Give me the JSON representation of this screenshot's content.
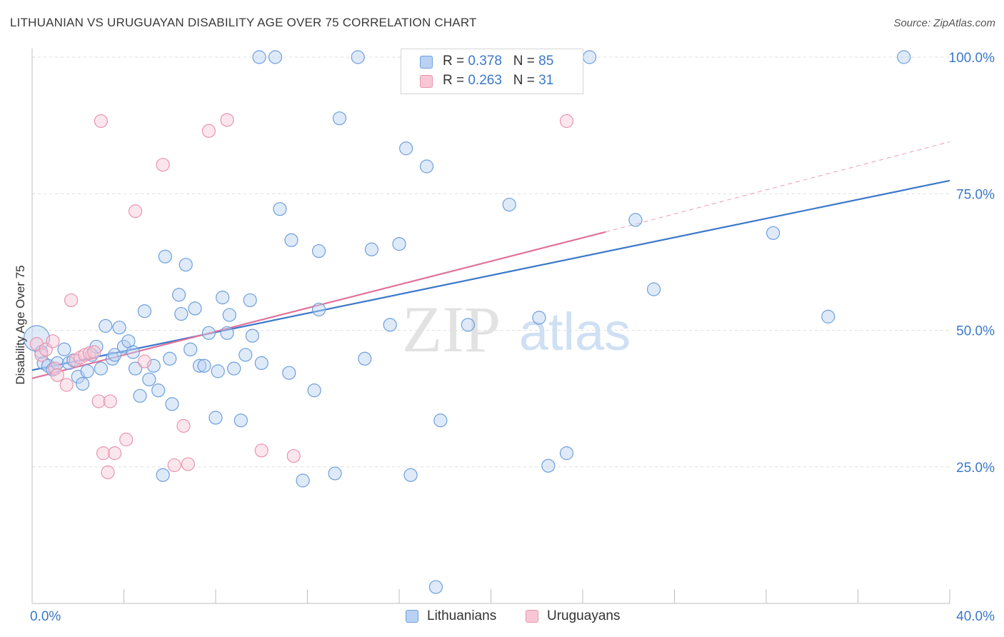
{
  "title": "LITHUANIAN VS URUGUAYAN DISABILITY AGE OVER 75 CORRELATION CHART",
  "source": "Source: ZipAtlas.com",
  "watermark": {
    "zip": "ZIP",
    "atlas": "atlas"
  },
  "colors": {
    "blue": "#6e9fdc",
    "blue_fill": "#b9d1f2",
    "blue_line": "#3a78c9",
    "pink": "#e895ae",
    "pink_fill": "#f8c7d6",
    "pink_line": "#e0719a",
    "axis_label": "#3b78c8",
    "grid": "#dedede"
  },
  "legend": {
    "rows": [
      {
        "r_label": "R = ",
        "r_value": "0.378",
        "n_label": "N = ",
        "n_value": "85"
      },
      {
        "r_label": "R = ",
        "r_value": "0.263",
        "n_label": "N = ",
        "n_value": "31"
      }
    ],
    "bottom": [
      "Lithuanians",
      "Uruguayans"
    ]
  },
  "chart_data": {
    "type": "scatter",
    "title": "LITHUANIAN VS URUGUAYAN DISABILITY AGE OVER 75 CORRELATION CHART",
    "xlabel": "",
    "ylabel": "Disability Age Over 75",
    "xlim": [
      0,
      40
    ],
    "ylim": [
      0,
      102
    ],
    "x_tick_labels": [
      "0.0%",
      "40.0%"
    ],
    "y_tick_labels": [
      "25.0%",
      "50.0%",
      "75.0%",
      "100.0%"
    ],
    "y_ticks": [
      25,
      50,
      75,
      100
    ],
    "grid": true,
    "legend_position": "top-center",
    "series": [
      {
        "name": "Lithuanians",
        "points": [
          [
            0.2,
            48.5
          ],
          [
            0.4,
            46.0
          ],
          [
            0.5,
            44.0
          ],
          [
            0.7,
            43.5
          ],
          [
            0.9,
            42.8
          ],
          [
            1.1,
            44.0
          ],
          [
            1.4,
            46.5
          ],
          [
            1.6,
            44.0
          ],
          [
            1.8,
            44.5
          ],
          [
            2.0,
            41.5
          ],
          [
            2.2,
            40.2
          ],
          [
            2.4,
            42.5
          ],
          [
            2.6,
            45.5
          ],
          [
            2.8,
            47.0
          ],
          [
            3.0,
            43.0
          ],
          [
            3.2,
            50.8
          ],
          [
            3.5,
            44.8
          ],
          [
            3.6,
            45.5
          ],
          [
            3.8,
            50.5
          ],
          [
            4.0,
            47.0
          ],
          [
            4.2,
            48.0
          ],
          [
            4.4,
            46.0
          ],
          [
            4.5,
            43.0
          ],
          [
            4.7,
            38.0
          ],
          [
            4.9,
            53.5
          ],
          [
            5.1,
            41.0
          ],
          [
            5.3,
            43.5
          ],
          [
            5.5,
            39.0
          ],
          [
            5.8,
            63.5
          ],
          [
            6.0,
            44.8
          ],
          [
            6.1,
            36.5
          ],
          [
            6.4,
            56.5
          ],
          [
            6.5,
            53.0
          ],
          [
            6.7,
            62.0
          ],
          [
            6.9,
            46.5
          ],
          [
            7.1,
            54.0
          ],
          [
            7.3,
            43.5
          ],
          [
            7.5,
            43.5
          ],
          [
            7.7,
            49.5
          ],
          [
            8.0,
            34.0
          ],
          [
            8.1,
            42.5
          ],
          [
            8.3,
            56.0
          ],
          [
            8.5,
            49.5
          ],
          [
            8.6,
            52.8
          ],
          [
            8.8,
            43.0
          ],
          [
            9.1,
            33.5
          ],
          [
            9.3,
            45.5
          ],
          [
            9.5,
            55.5
          ],
          [
            9.6,
            49.0
          ],
          [
            10.0,
            44.0
          ],
          [
            10.8,
            72.2
          ],
          [
            11.2,
            42.2
          ],
          [
            11.3,
            66.5
          ],
          [
            11.8,
            22.5
          ],
          [
            12.3,
            39.0
          ],
          [
            12.5,
            64.5
          ],
          [
            12.5,
            53.8
          ],
          [
            13.2,
            23.8
          ],
          [
            13.4,
            88.8
          ],
          [
            14.5,
            44.8
          ],
          [
            14.8,
            64.8
          ],
          [
            15.6,
            51.0
          ],
          [
            16.0,
            65.8
          ],
          [
            16.3,
            83.3
          ],
          [
            16.5,
            23.5
          ],
          [
            17.2,
            80.0
          ],
          [
            17.8,
            33.5
          ],
          [
            19.0,
            51.0
          ],
          [
            20.8,
            73.0
          ],
          [
            22.1,
            52.3
          ],
          [
            22.5,
            25.2
          ],
          [
            23.3,
            27.5
          ],
          [
            26.3,
            70.2
          ],
          [
            27.1,
            57.5
          ],
          [
            32.3,
            67.8
          ],
          [
            34.7,
            52.5
          ],
          [
            38.0,
            100.0
          ],
          [
            9.9,
            100.0
          ],
          [
            10.6,
            100.0
          ],
          [
            19.8,
            100.0
          ],
          [
            20.8,
            100.0
          ],
          [
            24.3,
            100.0
          ],
          [
            14.2,
            100.0
          ],
          [
            17.6,
            3.0
          ],
          [
            5.7,
            23.5
          ]
        ],
        "trend": {
          "x": [
            0,
            40
          ],
          "y": [
            42.7,
            77.4
          ],
          "dashed": false
        }
      },
      {
        "name": "Uruguayans",
        "points": [
          [
            0.2,
            47.5
          ],
          [
            0.4,
            45.5
          ],
          [
            0.6,
            46.5
          ],
          [
            0.9,
            48.0
          ],
          [
            1.0,
            43.0
          ],
          [
            1.1,
            41.8
          ],
          [
            1.5,
            40.0
          ],
          [
            1.7,
            55.5
          ],
          [
            1.9,
            44.5
          ],
          [
            2.1,
            45.0
          ],
          [
            2.3,
            45.5
          ],
          [
            2.5,
            45.8
          ],
          [
            2.7,
            46.0
          ],
          [
            2.9,
            37.0
          ],
          [
            3.1,
            27.5
          ],
          [
            3.3,
            24.0
          ],
          [
            3.4,
            37.0
          ],
          [
            3.6,
            27.5
          ],
          [
            4.1,
            30.0
          ],
          [
            4.5,
            71.8
          ],
          [
            4.9,
            44.3
          ],
          [
            5.7,
            80.3
          ],
          [
            6.2,
            25.3
          ],
          [
            6.6,
            32.5
          ],
          [
            6.8,
            25.5
          ],
          [
            7.7,
            86.5
          ],
          [
            8.5,
            88.5
          ],
          [
            10.0,
            28.0
          ],
          [
            11.4,
            27.0
          ],
          [
            23.3,
            88.3
          ],
          [
            3.0,
            88.3
          ]
        ],
        "trend": {
          "x": [
            0,
            25
          ],
          "y": [
            41.2,
            68.0
          ],
          "dashed": false
        },
        "trend_extension": {
          "x": [
            25,
            40
          ],
          "y": [
            68.0,
            84.5
          ],
          "dashed": true
        }
      }
    ]
  }
}
